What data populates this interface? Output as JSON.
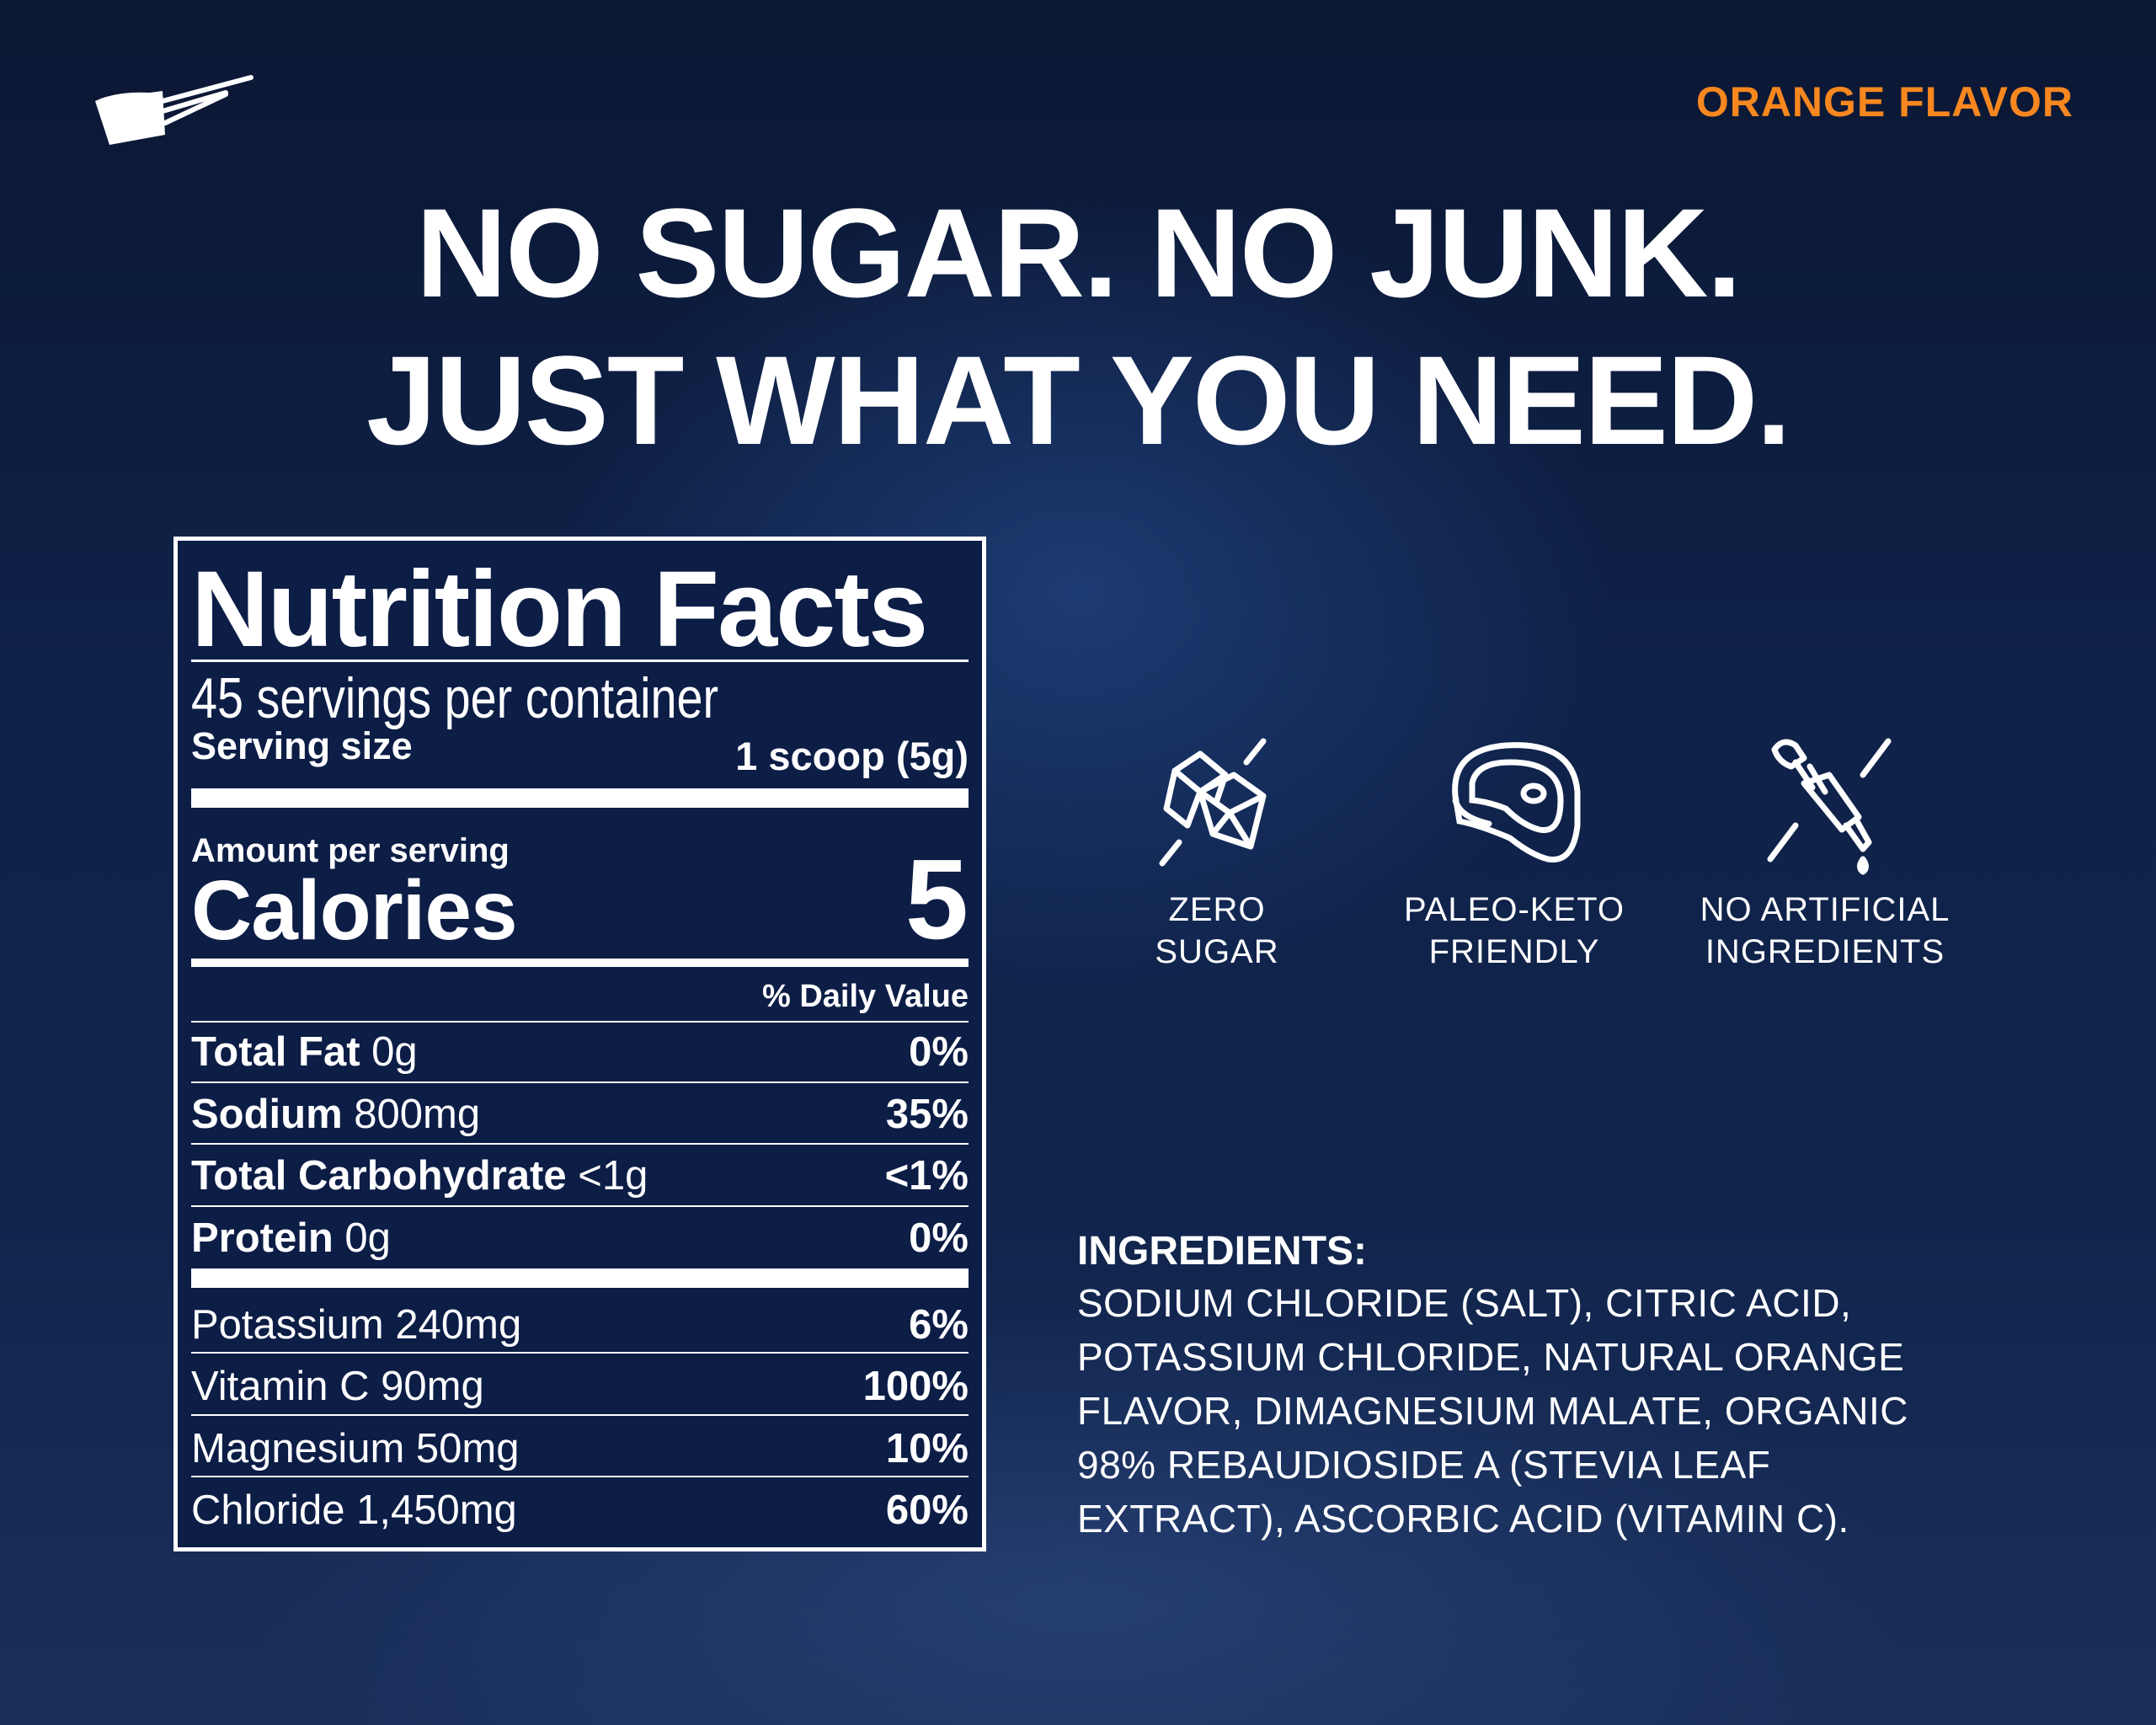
{
  "brand": {
    "logo_icon": "measuring-scoop-icon"
  },
  "flavor": "ORANGE FLAVOR",
  "headline": {
    "line1": "NO SUGAR. NO JUNK.",
    "line2": "JUST WHAT YOU NEED."
  },
  "nutrition": {
    "title": "Nutrition Facts",
    "servings": "45 servings per container",
    "serving_size_label": "Serving size",
    "serving_size_value": "1 scoop (5g)",
    "amount_label": "Amount per serving",
    "calories_label": "Calories",
    "calories_value": "5",
    "dv_header": "% Daily Value",
    "rows": [
      {
        "name": "Total Fat",
        "amount": "0g",
        "dv": "0%"
      },
      {
        "name": "Sodium",
        "amount": "800mg",
        "dv": "35%"
      },
      {
        "name": "Total Carbohydrate",
        "amount": "<1g",
        "dv": "<1%"
      },
      {
        "name": "Protein",
        "amount": "0g",
        "dv": "0%"
      }
    ],
    "minerals": [
      {
        "name": "Potassium",
        "amount": "240mg",
        "dv": "6%"
      },
      {
        "name": "Vitamin C",
        "amount": "90mg",
        "dv": "100%"
      },
      {
        "name": "Magnesium",
        "amount": "50mg",
        "dv": "10%"
      },
      {
        "name": "Chloride",
        "amount": "1,450mg",
        "dv": "60%"
      }
    ]
  },
  "features": [
    {
      "icon": "sugar-cubes-crossed-icon",
      "line1": "ZERO",
      "line2": "SUGAR"
    },
    {
      "icon": "steak-icon",
      "line1": "PALEO-KETO",
      "line2": "FRIENDLY"
    },
    {
      "icon": "dropper-crossed-icon",
      "line1": "NO ARTIFICIAL",
      "line2": "INGREDIENTS"
    }
  ],
  "ingredients": {
    "title": "INGREDIENTS:",
    "lines": [
      "SODIUM CHLORIDE (SALT), CITRIC ACID,",
      "POTASSIUM CHLORIDE, NATURAL ORANGE",
      "FLAVOR, DIMAGNESIUM MALATE, ORGANIC",
      "98% REBAUDIOSIDE A (STEVIA LEAF",
      "EXTRACT), ASCORBIC ACID (VITAMIN C)."
    ]
  },
  "colors": {
    "accent": "#f7871f",
    "background": "#0f2249",
    "panel": "#0c1d46"
  }
}
